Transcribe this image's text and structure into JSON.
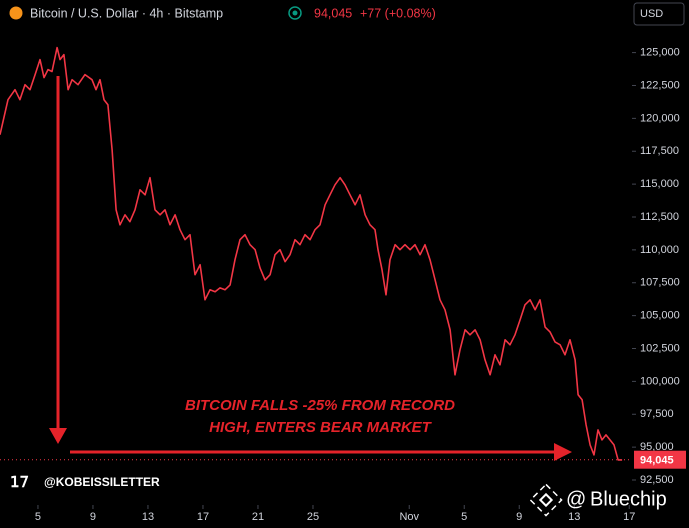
{
  "chart_data": {
    "type": "line",
    "title": "Bitcoin / U.S. Dollar · 4h · Bitstamp",
    "change": "+77 (+0.08%)",
    "currency": "USD",
    "last_price": {
      "value": 94045,
      "label": "94,045"
    },
    "annotation": [
      "BITCOIN FALLS -25% FROM RECORD",
      "HIGH, ENTERS BEAR MARKET"
    ],
    "watermark": "@KOBEISSILETTER",
    "source": "Bluechip",
    "xlim": [
      2.24,
      48.2
    ],
    "ylim": [
      90600,
      129000
    ],
    "xticks": [
      5,
      9,
      13,
      17,
      21,
      25,
      {
        "value": 32,
        "label": "Nov"
      },
      {
        "value": 36,
        "label": "5"
      },
      {
        "value": 40,
        "label": "9"
      },
      {
        "value": 44,
        "label": "13"
      },
      {
        "value": 48,
        "label": "17"
      }
    ],
    "yticks": [
      {
        "value": 92500,
        "label": "92,500"
      },
      {
        "value": 95000,
        "label": "95,000"
      },
      {
        "value": 97500,
        "label": "97,500"
      },
      {
        "value": 100000,
        "label": "100,000"
      },
      {
        "value": 102500,
        "label": "102,500"
      },
      {
        "value": 105000,
        "label": "105,000"
      },
      {
        "value": 107500,
        "label": "107,500"
      },
      {
        "value": 110000,
        "label": "110,000"
      },
      {
        "value": 112500,
        "label": "112,500"
      },
      {
        "value": 115000,
        "label": "115,000"
      },
      {
        "value": 117500,
        "label": "117,500"
      },
      {
        "value": 120000,
        "label": "120,000"
      },
      {
        "value": 122500,
        "label": "122,500"
      },
      {
        "value": 125000,
        "label": "125,000"
      }
    ],
    "x": [
      2.24,
      2.82,
      3.33,
      3.69,
      4.06,
      4.42,
      4.79,
      5.15,
      5.44,
      5.73,
      6.02,
      6.39,
      6.6,
      6.89,
      7.19,
      7.48,
      7.91,
      8.42,
      8.93,
      9.22,
      9.51,
      9.8,
      10.09,
      10.39,
      10.68,
      10.97,
      11.33,
      11.69,
      12.06,
      12.42,
      12.79,
      13.15,
      13.51,
      13.88,
      14.24,
      14.6,
      14.97,
      15.33,
      15.69,
      16.06,
      16.42,
      16.79,
      17.15,
      17.51,
      17.88,
      18.24,
      18.6,
      18.97,
      19.33,
      19.69,
      20.06,
      20.42,
      20.79,
      21.15,
      21.51,
      21.88,
      22.24,
      22.6,
      22.97,
      23.33,
      23.69,
      24.06,
      24.42,
      24.79,
      25.15,
      25.51,
      25.88,
      26.24,
      26.6,
      26.97,
      27.33,
      27.69,
      28.06,
      28.42,
      28.79,
      29.15,
      29.51,
      29.73,
      30.02,
      30.31,
      30.6,
      30.97,
      31.33,
      31.69,
      32.06,
      32.42,
      32.79,
      33.15,
      33.51,
      33.88,
      34.24,
      34.6,
      34.97,
      35.33,
      35.69,
      36.06,
      36.42,
      36.79,
      37.15,
      37.51,
      37.88,
      38.24,
      38.6,
      38.97,
      39.33,
      39.69,
      40.06,
      40.42,
      40.79,
      41.15,
      41.51,
      41.88,
      42.24,
      42.6,
      42.97,
      43.33,
      43.69,
      44.06,
      44.28,
      44.57,
      44.86,
      45.15,
      45.44,
      45.73,
      46.02,
      46.31,
      46.6,
      46.89,
      47.19,
      47.48
    ],
    "series": [
      {
        "name": "BTCUSD",
        "color": "#f23645",
        "values": [
          118760,
          121420,
          122180,
          121420,
          122560,
          122180,
          123330,
          124470,
          123100,
          123710,
          123560,
          125380,
          124470,
          124850,
          122180,
          122940,
          122560,
          123330,
          122940,
          122180,
          122940,
          121420,
          121040,
          117620,
          113050,
          111910,
          112670,
          112140,
          113050,
          114570,
          114190,
          115490,
          113050,
          112670,
          113050,
          111910,
          112670,
          111530,
          110770,
          111150,
          108110,
          108870,
          106200,
          106960,
          106810,
          107110,
          106960,
          107340,
          109250,
          110770,
          111150,
          110390,
          110010,
          108640,
          107720,
          108110,
          109630,
          110010,
          109100,
          109630,
          110770,
          110390,
          111150,
          110770,
          111530,
          111910,
          113430,
          114190,
          114950,
          115490,
          114950,
          114190,
          113430,
          114190,
          112670,
          111910,
          111530,
          110010,
          108490,
          106580,
          109250,
          110390,
          110010,
          110390,
          110010,
          110390,
          109630,
          110390,
          109250,
          107720,
          106200,
          105440,
          103920,
          100500,
          102400,
          103920,
          103540,
          103920,
          103160,
          101640,
          100500,
          102020,
          101260,
          103160,
          102780,
          103540,
          104680,
          105820,
          106200,
          105440,
          106200,
          104130,
          103760,
          103000,
          102780,
          102020,
          103160,
          101640,
          98980,
          98600,
          96690,
          95170,
          94410,
          96310,
          95550,
          95930,
          95550,
          95170,
          94030,
          94030
        ]
      }
    ]
  }
}
